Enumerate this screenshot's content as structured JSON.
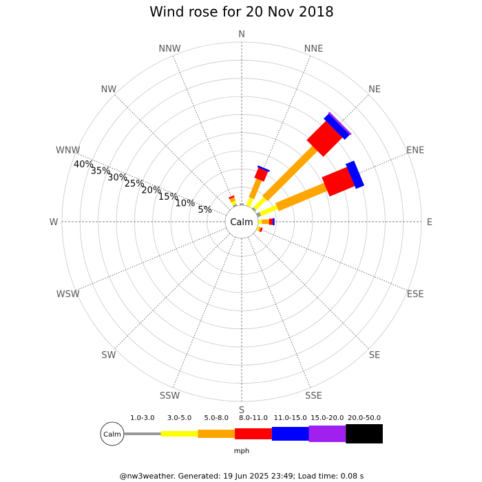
{
  "chart_data": {
    "type": "wind-rose",
    "title": "Wind rose for 20 Nov 2018",
    "directions": [
      "N",
      "NNE",
      "NE",
      "ENE",
      "E",
      "ESE",
      "SE",
      "SSE",
      "S",
      "SSW",
      "SW",
      "WSW",
      "W",
      "WNW",
      "NW",
      "NNW"
    ],
    "radial_labels": [
      "5%",
      "10%",
      "15%",
      "20%",
      "25%",
      "30%",
      "35%",
      "40%"
    ],
    "radial_max": 45,
    "grid": true,
    "calm_label": "Calm",
    "legend": {
      "unit": "mph",
      "calm_label": "Calm",
      "bins": [
        "1.0-3.0",
        "3.0-5.0",
        "5.0-8.0",
        "8.0-11.0",
        "11.0-15.0",
        "15.0-20.0",
        "20.0-50.0"
      ],
      "colors": [
        "#999999",
        "#ffff00",
        "#ffa500",
        "#ff0000",
        "#0000ff",
        "#a020f0",
        "#000000"
      ]
    },
    "series": [
      {
        "bin": "1.0-3.0",
        "values": [
          0.5,
          0.0,
          0.5,
          1.0,
          0.0,
          0.0,
          0.0,
          0.0,
          0,
          0,
          0,
          0,
          0,
          0,
          0,
          0.5
        ]
      },
      {
        "bin": "3.0-5.0",
        "values": [
          0.0,
          2.5,
          4.0,
          5.0,
          1.0,
          0.5,
          0.0,
          0.0,
          0,
          0,
          0,
          0,
          0,
          0,
          0,
          1.0
        ]
      },
      {
        "bin": "5.0-8.0",
        "values": [
          0.0,
          5.5,
          19.5,
          14.5,
          2.0,
          0.5,
          0.0,
          0.0,
          0,
          0,
          0,
          0,
          0,
          0,
          0,
          1.0
        ]
      },
      {
        "bin": "8.0-11.0",
        "values": [
          0.0,
          3.0,
          7.5,
          7.5,
          1.0,
          0.5,
          0.0,
          0.0,
          0,
          0,
          0,
          0,
          0,
          0,
          0,
          0.5
        ]
      },
      {
        "bin": "11.0-15.0",
        "values": [
          0.0,
          0.5,
          2.0,
          2.5,
          0.5,
          0.0,
          0.0,
          0.0,
          0,
          0,
          0,
          0,
          0,
          0,
          0,
          0.0
        ]
      },
      {
        "bin": "15.0-20.0",
        "values": [
          0.0,
          0.0,
          0.5,
          0.0,
          0.0,
          0.0,
          0.0,
          0.0,
          0,
          0,
          0,
          0,
          0,
          0,
          0,
          0.0
        ]
      },
      {
        "bin": "20.0-50.0",
        "values": [
          0.0,
          0.0,
          0.0,
          0.0,
          0.0,
          0.0,
          0.0,
          0.0,
          0,
          0,
          0,
          0,
          0,
          0,
          0,
          0.0
        ]
      }
    ]
  },
  "footer": "@nw3weather. Generated: 19 Jun 2025 23:49; Load time: 0.08 s"
}
